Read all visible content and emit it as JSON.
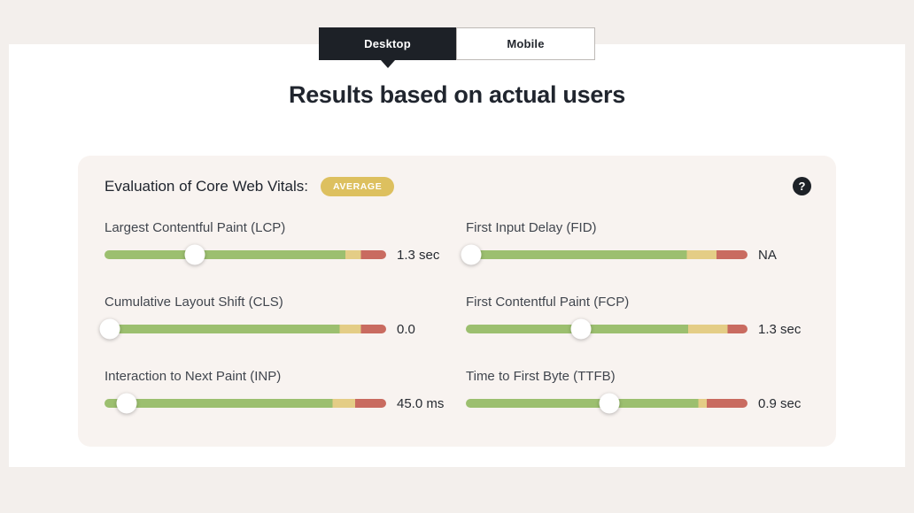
{
  "page": {
    "background_color": "#f3efec",
    "panel_color": "#ffffff"
  },
  "tabs": [
    {
      "label": "Desktop",
      "active": true
    },
    {
      "label": "Mobile",
      "active": false
    }
  ],
  "heading": "Results based on actual users",
  "card": {
    "background_color": "#f8f3f0",
    "title": "Evaluation of Core Web Vitals:",
    "badge": "AVERAGE",
    "badge_color": "#ddc05f",
    "help_icon": "question-mark-icon",
    "segment_colors": {
      "good": "#9cbf6f",
      "needs_improvement": "#e4cd86",
      "poor": "#c96b60"
    },
    "metrics": [
      {
        "label": "Largest Contentful Paint (LCP)",
        "value": "1.3 sec",
        "thumb_percent": 32,
        "segments": {
          "good": 85.5,
          "needs_improvement": 5.5,
          "poor": 9
        }
      },
      {
        "label": "First Input Delay (FID)",
        "value": "NA",
        "thumb_percent": 2,
        "segments": {
          "good": 78.5,
          "needs_improvement": 10.5,
          "poor": 11
        }
      },
      {
        "label": "Cumulative Layout Shift (CLS)",
        "value": "0.0",
        "thumb_percent": 2,
        "segments": {
          "good": 83.5,
          "needs_improvement": 7.5,
          "poor": 9
        }
      },
      {
        "label": "First Contentful Paint (FCP)",
        "value": "1.3 sec",
        "thumb_percent": 41,
        "segments": {
          "good": 79,
          "needs_improvement": 14,
          "poor": 7
        }
      },
      {
        "label": "Interaction to Next Paint (INP)",
        "value": "45.0 ms",
        "thumb_percent": 8,
        "segments": {
          "good": 81,
          "needs_improvement": 8,
          "poor": 11
        }
      },
      {
        "label": "Time to First Byte (TTFB)",
        "value": "0.9 sec",
        "thumb_percent": 51,
        "segments": {
          "good": 82.5,
          "needs_improvement": 3,
          "poor": 14.5
        }
      }
    ]
  }
}
